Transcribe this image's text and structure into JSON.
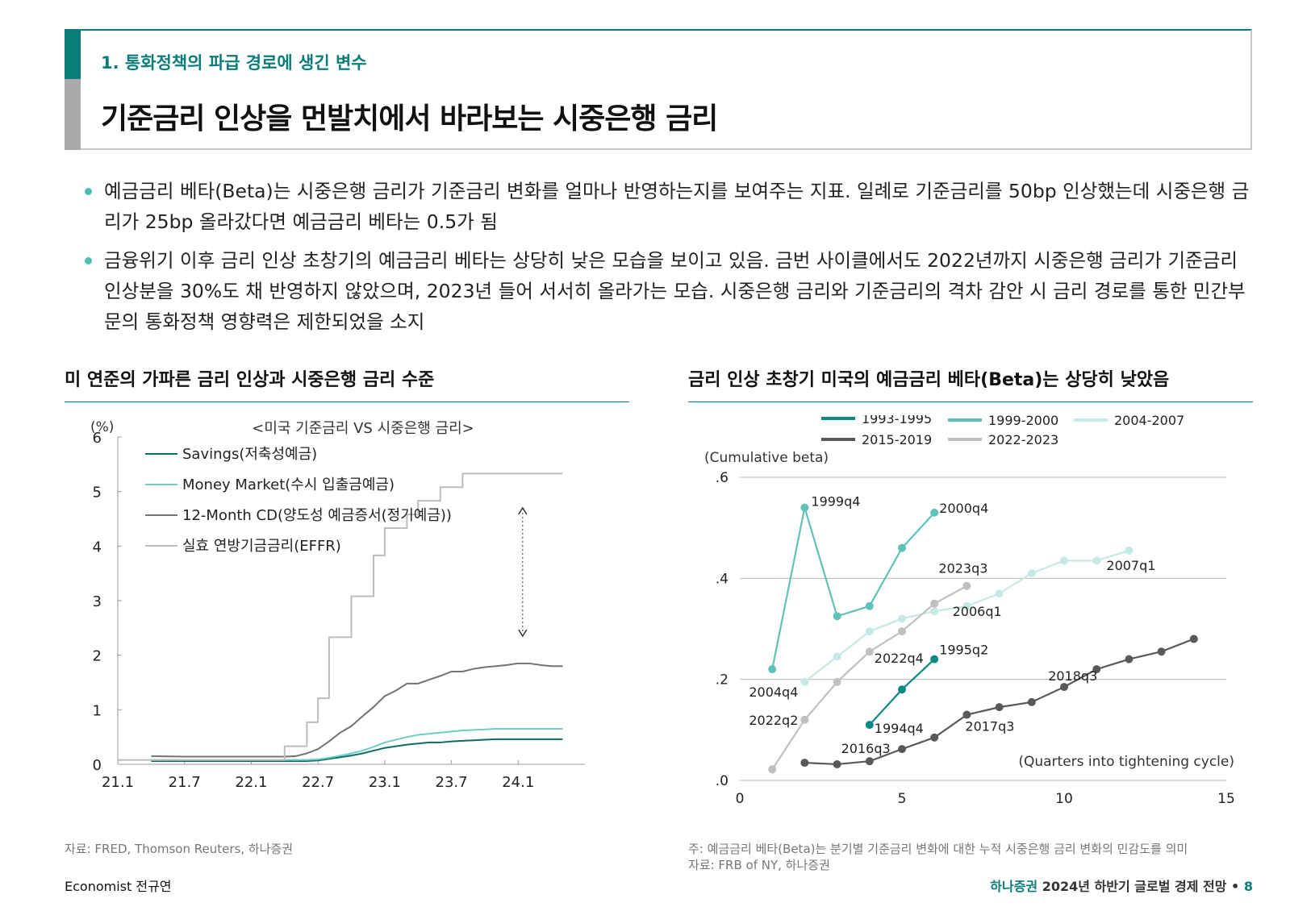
{
  "header": {
    "section_label": "1. 통화정책의 파급 경로에 생긴 변수",
    "title": "기준금리 인상을 먼발치에서 바라보는 시중은행 금리"
  },
  "bullets": [
    "예금금리 베타(Beta)는 시중은행 금리가 기준금리 변화를 얼마나 반영하는지를 보여주는 지표. 일례로 기준금리를 50bp 인상했는데 시중은행 금리가 25bp 올라갔다면 예금금리 베타는 0.5가 됨",
    "금융위기 이후 금리 인상 초창기의 예금금리 베타는 상당히 낮은 모습을 보이고 있음. 금번 사이클에서도 2022년까지 시중은행 금리가 기준금리 인상분을 30%도 채 반영하지 않았으며, 2023년 들어 서서히 올라가는 모습. 시중은행 금리와 기준금리의 격차 감안 시 금리 경로를 통한 민간부문의 통화정책 영향력은 제한되었을 소지"
  ],
  "left_panel": {
    "heading": "미 연준의 가파른 금리 인상과 시중은행 금리 수준",
    "source": "자료: FRED, Thomson Reuters, 하나증권"
  },
  "right_panel": {
    "heading": "금리 인상 초창기 미국의 예금금리 베타(Beta)는 상당히 낮았음",
    "note": "주: 예금금리 베타(Beta)는 분기별 기준금리 변화에 대한 누적 시중은행 금리 변화의 민감도를 의미",
    "source": "자료: FRB of NY, 하나증권"
  },
  "footer": {
    "author": "Economist 전규연",
    "brand": "하나증권",
    "report": "2024년 하반기 글로벌 경제 전망",
    "separator": "•",
    "page": "8"
  },
  "chart_data": [
    {
      "type": "line",
      "title": "<미국 기준금리 VS 시중은행 금리>",
      "ylabel": "(%)",
      "xlabel": "",
      "ylim": [
        0,
        6
      ],
      "yticks": [
        "0",
        "1",
        "2",
        "3",
        "4",
        "5",
        "6"
      ],
      "xlim": [
        0,
        42
      ],
      "xtick_positions": [
        0,
        6,
        12,
        18,
        24,
        30,
        36
      ],
      "xtick_labels": [
        "21.1",
        "21.7",
        "22.1",
        "22.7",
        "23.1",
        "23.7",
        "24.1"
      ],
      "annotation": "double-arrow between 실효 연방기금금리(EFFR) and 12-Month CD near 24.1",
      "arrow_x": 36.4,
      "arrow_range": [
        2.35,
        4.7
      ],
      "series": [
        {
          "name": "Savings(저축성예금)",
          "color": "#0d6b66",
          "style": "line",
          "x": [
            3,
            6,
            9,
            12,
            14,
            15,
            16,
            17,
            18,
            19,
            20,
            21,
            22,
            23,
            24,
            25,
            26,
            27,
            28,
            29,
            30,
            31,
            32,
            33,
            34,
            35,
            36,
            37,
            38,
            39,
            40
          ],
          "values": [
            0.06,
            0.06,
            0.06,
            0.06,
            0.06,
            0.06,
            0.06,
            0.06,
            0.07,
            0.1,
            0.13,
            0.16,
            0.2,
            0.25,
            0.3,
            0.33,
            0.36,
            0.38,
            0.4,
            0.4,
            0.42,
            0.43,
            0.44,
            0.45,
            0.46,
            0.46,
            0.46,
            0.46,
            0.46,
            0.46,
            0.46
          ]
        },
        {
          "name": "Money Market(수시 입출금예금)",
          "color": "#6ccdc0",
          "style": "line",
          "x": [
            3,
            6,
            9,
            12,
            14,
            15,
            16,
            17,
            18,
            19,
            20,
            21,
            22,
            23,
            24,
            25,
            26,
            27,
            28,
            29,
            30,
            31,
            32,
            33,
            34,
            35,
            36,
            37,
            38,
            39,
            40
          ],
          "values": [
            0.08,
            0.08,
            0.08,
            0.08,
            0.08,
            0.08,
            0.08,
            0.08,
            0.09,
            0.12,
            0.16,
            0.2,
            0.25,
            0.32,
            0.4,
            0.45,
            0.5,
            0.54,
            0.56,
            0.58,
            0.6,
            0.62,
            0.63,
            0.64,
            0.65,
            0.65,
            0.65,
            0.65,
            0.65,
            0.65,
            0.65
          ]
        },
        {
          "name": "12-Month CD(양도성 예금증서(정기예금))",
          "color": "#737373",
          "style": "line",
          "x": [
            3,
            6,
            9,
            12,
            13,
            14,
            15,
            16,
            17,
            18,
            19,
            20,
            21,
            22,
            23,
            24,
            25,
            26,
            27,
            28,
            29,
            30,
            31,
            32,
            33,
            34,
            35,
            36,
            37,
            38,
            39,
            40
          ],
          "values": [
            0.15,
            0.14,
            0.14,
            0.14,
            0.14,
            0.14,
            0.14,
            0.15,
            0.2,
            0.28,
            0.42,
            0.58,
            0.7,
            0.88,
            1.05,
            1.25,
            1.35,
            1.48,
            1.48,
            1.55,
            1.62,
            1.7,
            1.7,
            1.75,
            1.78,
            1.8,
            1.82,
            1.85,
            1.85,
            1.82,
            1.8,
            1.8
          ]
        },
        {
          "name": "실효 연방기금금리(EFFR)",
          "color": "#bdbdbd",
          "style": "step",
          "x": [
            0,
            3,
            6,
            9,
            12,
            14,
            15,
            16,
            17,
            18,
            19,
            20,
            21,
            22,
            23,
            24,
            25,
            26,
            27,
            28,
            29,
            30,
            31,
            32,
            33,
            34,
            35,
            36,
            37,
            38,
            39,
            40
          ],
          "values": [
            0.08,
            0.08,
            0.08,
            0.08,
            0.08,
            0.08,
            0.33,
            0.33,
            0.77,
            1.21,
            2.33,
            2.33,
            3.08,
            3.08,
            3.83,
            4.33,
            4.33,
            4.58,
            4.83,
            4.83,
            5.08,
            5.08,
            5.33,
            5.33,
            5.33,
            5.33,
            5.33,
            5.33,
            5.33,
            5.33,
            5.33,
            5.33
          ]
        }
      ]
    },
    {
      "type": "line",
      "title": "",
      "ylabel": "(Cumulative beta)",
      "xlabel": "(Quarters into tightening cycle)",
      "ylim": [
        0,
        0.6
      ],
      "yticks": [
        ".0",
        ".2",
        ".4",
        ".6"
      ],
      "xlim": [
        0,
        15
      ],
      "xticks": [
        "0",
        "5",
        "10",
        "15"
      ],
      "series": [
        {
          "name": "1993-1995",
          "color": "#0a8a84",
          "x": [
            4,
            5,
            6
          ],
          "values": [
            0.11,
            0.18,
            0.24
          ]
        },
        {
          "name": "1999-2000",
          "color": "#5fc2b8",
          "x": [
            1,
            2,
            3,
            4,
            5,
            6
          ],
          "values": [
            0.22,
            0.54,
            0.325,
            0.345,
            0.46,
            0.53
          ]
        },
        {
          "name": "2004-2007",
          "color": "#c5e9e4",
          "x": [
            2,
            3,
            4,
            5,
            6,
            7,
            8,
            9,
            10,
            11,
            12
          ],
          "values": [
            0.195,
            0.245,
            0.295,
            0.32,
            0.335,
            0.345,
            0.37,
            0.41,
            0.435,
            0.435,
            0.455
          ]
        },
        {
          "name": "2015-2019",
          "color": "#595959",
          "x": [
            2,
            3,
            4,
            5,
            6,
            7,
            8,
            9,
            10,
            11,
            12,
            13,
            14
          ],
          "values": [
            0.035,
            0.032,
            0.038,
            0.062,
            0.085,
            0.13,
            0.145,
            0.155,
            0.185,
            0.22,
            0.24,
            0.255,
            0.28
          ]
        },
        {
          "name": "2022-2023",
          "color": "#c0c0c0",
          "x": [
            1,
            2,
            3,
            4,
            5,
            6,
            7
          ],
          "values": [
            0.022,
            0.12,
            0.195,
            0.255,
            0.295,
            0.35,
            0.385
          ]
        }
      ],
      "annotations": [
        {
          "text": "1999q4",
          "x": 2,
          "y": 0.54
        },
        {
          "text": "2000q4",
          "x": 6,
          "y": 0.53
        },
        {
          "text": "2023q3",
          "x": 7,
          "y": 0.385
        },
        {
          "text": "2007q1",
          "x": 12,
          "y": 0.455
        },
        {
          "text": "2006q1",
          "x": 8,
          "y": 0.37
        },
        {
          "text": "2022q4",
          "x": 4,
          "y": 0.255
        },
        {
          "text": "1995q2",
          "x": 6,
          "y": 0.24
        },
        {
          "text": "2018q3",
          "x": 11,
          "y": 0.22
        },
        {
          "text": "2004q4",
          "x": 2,
          "y": 0.195
        },
        {
          "text": "2022q2",
          "x": 2,
          "y": 0.12
        },
        {
          "text": "1994q4",
          "x": 4,
          "y": 0.11
        },
        {
          "text": "2017q3",
          "x": 7,
          "y": 0.13
        },
        {
          "text": "2016q3",
          "x": 3,
          "y": 0.032
        }
      ]
    }
  ]
}
